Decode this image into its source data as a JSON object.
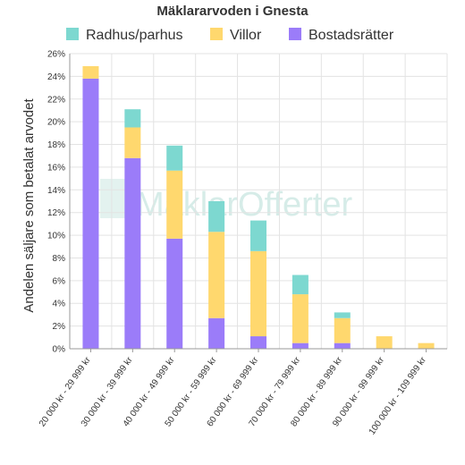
{
  "chart_data": {
    "type": "bar",
    "stacked": true,
    "title": "Mäklararvoden i Gnesta",
    "ylabel": "Andelen säljare som betalat arvodet",
    "xlabel": "",
    "ylim": [
      0,
      26
    ],
    "y_ticks": [
      "0%",
      "2%",
      "4%",
      "6%",
      "8%",
      "10%",
      "12%",
      "14%",
      "16%",
      "18%",
      "20%",
      "22%",
      "24%",
      "26%"
    ],
    "grid": true,
    "legend_position": "top",
    "categories": [
      "20 000 kr - 29 999 kr",
      "30 000 kr - 39 999 kr",
      "40 000 kr - 49 999 kr",
      "50 000 kr - 59 999 kr",
      "60 000 kr - 69 999 kr",
      "70 000 kr - 79 999 kr",
      "80 000 kr - 89 999 kr",
      "90 000 kr - 99 999 kr",
      "100 000 kr - 109 999 kr"
    ],
    "series": [
      {
        "name": "Bostadsrätter",
        "color": "#9b7cf9",
        "values": [
          23.8,
          16.8,
          9.7,
          2.7,
          1.1,
          0.5,
          0.5,
          0,
          0
        ]
      },
      {
        "name": "Villor",
        "color": "#ffd86e",
        "values": [
          1.1,
          2.7,
          6.0,
          7.6,
          7.5,
          4.3,
          2.2,
          1.1,
          0.5
        ]
      },
      {
        "name": "Radhus/parhus",
        "color": "#7dd8d0",
        "values": [
          0,
          1.6,
          2.2,
          2.7,
          2.7,
          1.7,
          0.5,
          0,
          0
        ]
      }
    ],
    "legend_order": [
      "Radhus/parhus",
      "Villor",
      "Bostadsrätter"
    ],
    "watermark": "MäklarOfferter"
  }
}
